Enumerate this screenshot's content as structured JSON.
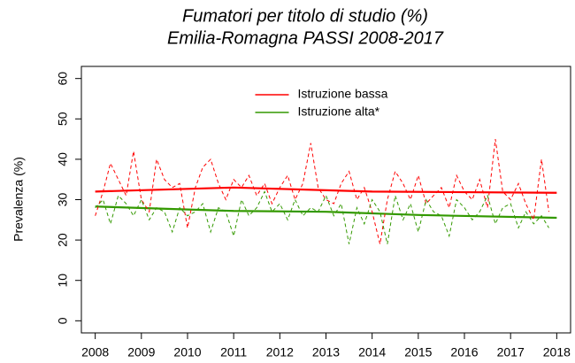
{
  "chart_data": {
    "type": "line",
    "title": "Fumatori per titolo di studio (%)",
    "subtitle": "Emilia-Romagna PASSI 2008-2017",
    "y_label": "Prevalenza (%)",
    "xlim": [
      2007.7,
      2018.3
    ],
    "xticks": [
      2008,
      2009,
      2010,
      2011,
      2012,
      2013,
      2014,
      2015,
      2016,
      2017,
      2018
    ],
    "ylim": [
      -3,
      63
    ],
    "yticks": [
      0,
      10,
      20,
      30,
      40,
      50,
      60
    ],
    "grid": false,
    "legend": "top-center",
    "series": [
      {
        "name": "Istruzione bassa",
        "color": "#ff0000",
        "dash": false,
        "x": [
          2008,
          2011,
          2014,
          2018
        ],
        "values": [
          32,
          33,
          32,
          31.7
        ]
      },
      {
        "name": "Istruzione alta*",
        "color": "#339900",
        "dash": false,
        "x": [
          2008,
          2011,
          2013,
          2015,
          2018
        ],
        "values": [
          28.3,
          27.2,
          27,
          26.2,
          25.5
        ]
      },
      {
        "color": "#ff0000",
        "dash": true,
        "x": [
          2008,
          2008.17,
          2008.33,
          2008.5,
          2008.67,
          2008.83,
          2009,
          2009.17,
          2009.33,
          2009.5,
          2009.67,
          2009.83,
          2010,
          2010.17,
          2010.33,
          2010.5,
          2010.67,
          2010.83,
          2011,
          2011.17,
          2011.33,
          2011.5,
          2011.67,
          2011.83,
          2012,
          2012.17,
          2012.33,
          2012.5,
          2012.67,
          2012.83,
          2013,
          2013.17,
          2013.33,
          2013.5,
          2013.67,
          2013.83,
          2014,
          2014.17,
          2014.33,
          2014.5,
          2014.67,
          2014.83,
          2015,
          2015.17,
          2015.33,
          2015.5,
          2015.67,
          2015.83,
          2016,
          2016.17,
          2016.33,
          2016.5,
          2016.67,
          2016.83,
          2017,
          2017.17,
          2017.33,
          2017.5,
          2017.67,
          2017.83
        ],
        "values": [
          26,
          32,
          39,
          35,
          31,
          42,
          30,
          27,
          40,
          35,
          33,
          34,
          23,
          33,
          38,
          40,
          34,
          30,
          35,
          33,
          36,
          31,
          34,
          29,
          33,
          36,
          30,
          34,
          44,
          33,
          30,
          29,
          34,
          37,
          30,
          33,
          27,
          19,
          30,
          37,
          34,
          30,
          36,
          29,
          31,
          33,
          28,
          36,
          32,
          30,
          35,
          28,
          45,
          32,
          30,
          34,
          29,
          25,
          40,
          27
        ]
      },
      {
        "color": "#339900",
        "dash": true,
        "x": [
          2008,
          2008.17,
          2008.33,
          2008.5,
          2008.67,
          2008.83,
          2009,
          2009.17,
          2009.33,
          2009.5,
          2009.67,
          2009.83,
          2010,
          2010.17,
          2010.33,
          2010.5,
          2010.67,
          2010.83,
          2011,
          2011.17,
          2011.33,
          2011.5,
          2011.67,
          2011.83,
          2012,
          2012.17,
          2012.33,
          2012.5,
          2012.67,
          2012.83,
          2013,
          2013.17,
          2013.33,
          2013.5,
          2013.67,
          2013.83,
          2014,
          2014.17,
          2014.33,
          2014.5,
          2014.67,
          2014.83,
          2015,
          2015.17,
          2015.33,
          2015.5,
          2015.67,
          2015.83,
          2016,
          2016.17,
          2016.33,
          2016.5,
          2016.67,
          2016.83,
          2017,
          2017.17,
          2017.33,
          2017.5,
          2017.67,
          2017.83
        ],
        "values": [
          28,
          30,
          24,
          31,
          29,
          26,
          30,
          25,
          28,
          27,
          22,
          28,
          26,
          27,
          29,
          22,
          28,
          27,
          21,
          30,
          26,
          28,
          32,
          27,
          29,
          25,
          30,
          26,
          28,
          27,
          31,
          26,
          29,
          19,
          28,
          24,
          30,
          27,
          19,
          31,
          25,
          29,
          22,
          30,
          27,
          26,
          21,
          30,
          28,
          25,
          27,
          31,
          24,
          28,
          29,
          23,
          27,
          24,
          26,
          23
        ]
      }
    ]
  }
}
